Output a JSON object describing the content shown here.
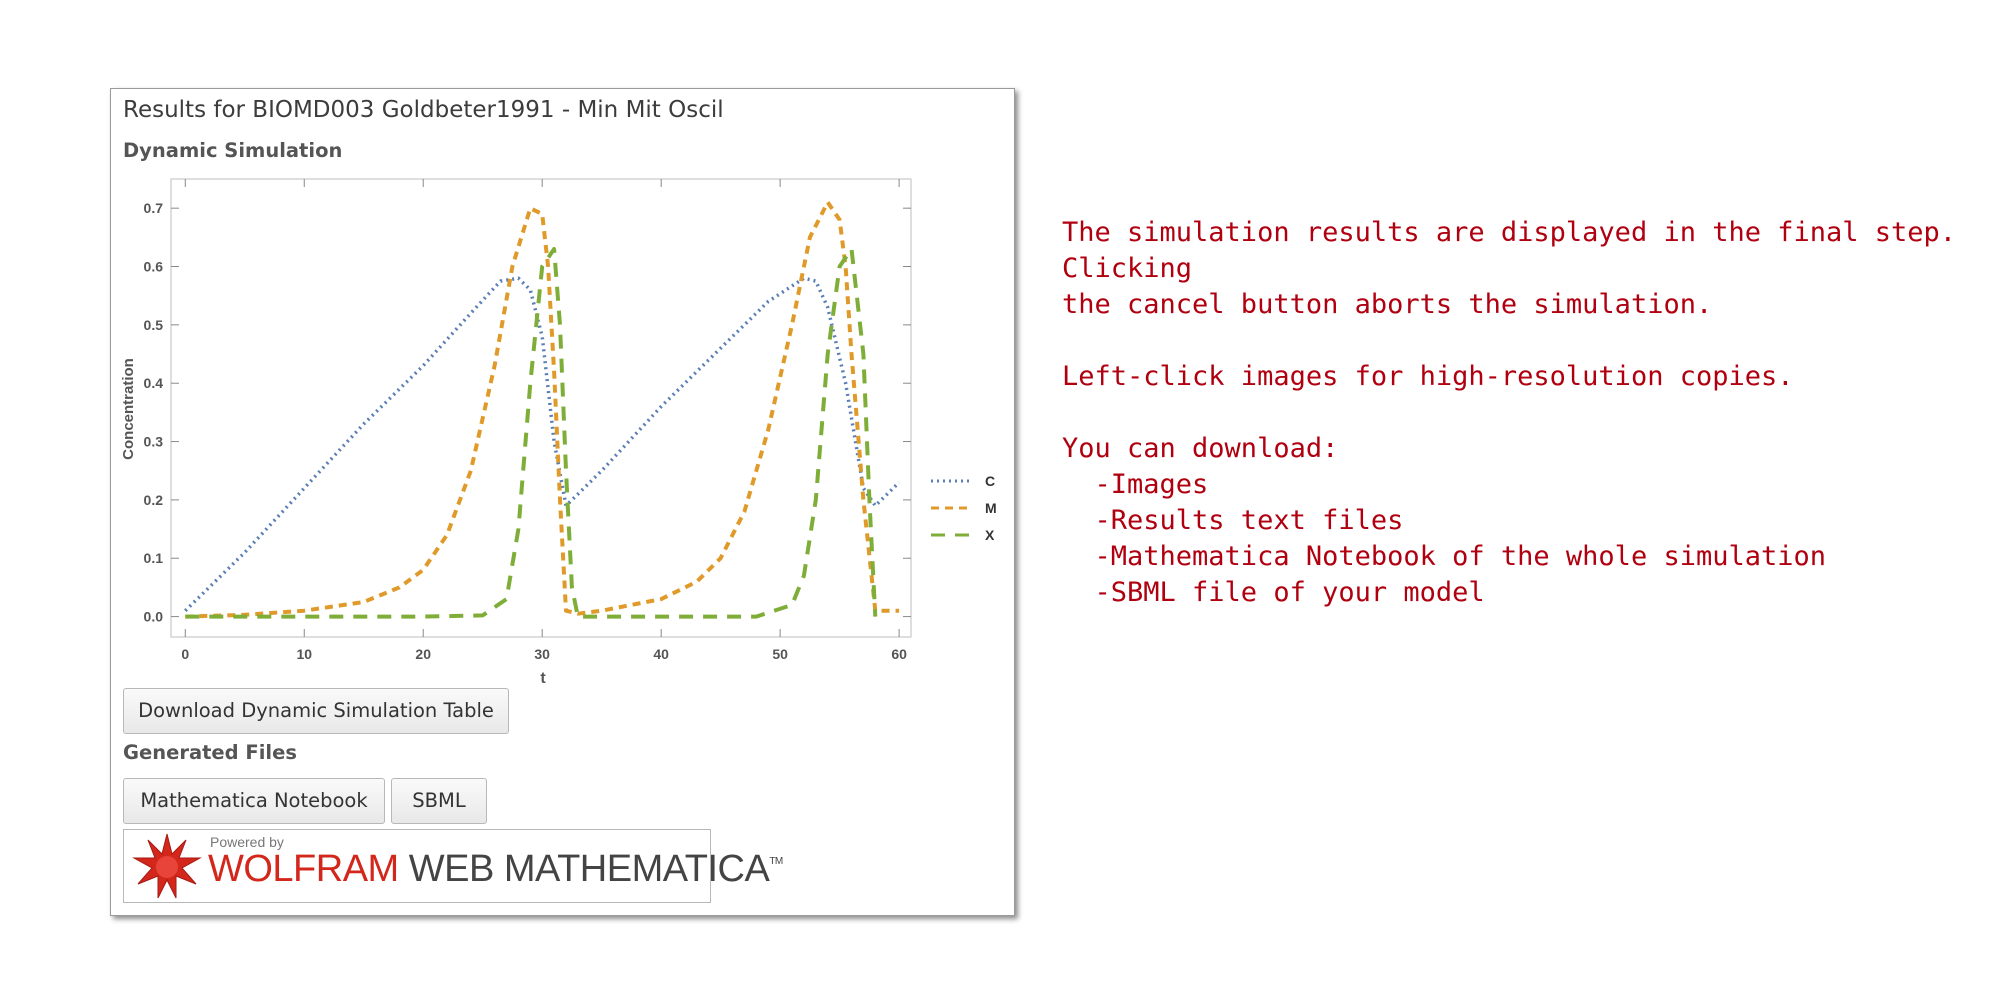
{
  "panel": {
    "title": "Results for BIOMD003 Goldbeter1991 - Min Mit Oscil",
    "subtitle": "Dynamic Simulation",
    "download_table_button": "Download Dynamic Simulation Table",
    "generated_files_label": "Generated Files",
    "notebook_button": "Mathematica Notebook",
    "sbml_button": "SBML",
    "logo": {
      "powered_by": "Powered by",
      "wolfram": "WOLFRAM",
      "product": " WEB MATHEMATICA",
      "tm": "TM"
    }
  },
  "chart_data": {
    "type": "line",
    "xlabel": "t",
    "ylabel": "Concentration",
    "xlim": [
      -1.2,
      61
    ],
    "ylim": [
      -0.035,
      0.75
    ],
    "xticks": [
      0,
      10,
      20,
      30,
      40,
      50,
      60
    ],
    "yticks": [
      0.0,
      0.1,
      0.2,
      0.3,
      0.4,
      0.5,
      0.6,
      0.7
    ],
    "ytick_labels": [
      "0.0",
      "0.1",
      "0.2",
      "0.3",
      "0.4",
      "0.5",
      "0.6",
      "0.7"
    ],
    "legend_position": "right",
    "grid": false,
    "series": [
      {
        "name": "C",
        "color": "#5b7fb4",
        "style": "dotted",
        "points": [
          [
            0,
            0.01
          ],
          [
            2,
            0.05
          ],
          [
            5,
            0.11
          ],
          [
            10,
            0.22
          ],
          [
            15,
            0.33
          ],
          [
            20,
            0.43
          ],
          [
            24,
            0.52
          ],
          [
            26.5,
            0.575
          ],
          [
            28,
            0.58
          ],
          [
            29,
            0.56
          ],
          [
            30,
            0.48
          ],
          [
            31,
            0.3
          ],
          [
            32,
            0.19
          ],
          [
            33,
            0.21
          ],
          [
            35,
            0.25
          ],
          [
            40,
            0.36
          ],
          [
            45,
            0.46
          ],
          [
            49,
            0.54
          ],
          [
            52,
            0.58
          ],
          [
            53,
            0.575
          ],
          [
            54,
            0.53
          ],
          [
            55.5,
            0.4
          ],
          [
            57,
            0.22
          ],
          [
            58,
            0.19
          ],
          [
            59,
            0.21
          ],
          [
            60,
            0.23
          ]
        ]
      },
      {
        "name": "M",
        "color": "#e09a2a",
        "style": "dashed",
        "points": [
          [
            0,
            0.0
          ],
          [
            5,
            0.003
          ],
          [
            10,
            0.01
          ],
          [
            15,
            0.025
          ],
          [
            18,
            0.05
          ],
          [
            20,
            0.08
          ],
          [
            22,
            0.14
          ],
          [
            24,
            0.25
          ],
          [
            26,
            0.43
          ],
          [
            27.5,
            0.6
          ],
          [
            29,
            0.7
          ],
          [
            30,
            0.69
          ],
          [
            30.5,
            0.6
          ],
          [
            31,
            0.42
          ],
          [
            31.5,
            0.2
          ],
          [
            32,
            0.01
          ],
          [
            33,
            0.005
          ],
          [
            35,
            0.01
          ],
          [
            40,
            0.03
          ],
          [
            43,
            0.06
          ],
          [
            45,
            0.1
          ],
          [
            47,
            0.18
          ],
          [
            49,
            0.32
          ],
          [
            51,
            0.5
          ],
          [
            52.5,
            0.65
          ],
          [
            54,
            0.71
          ],
          [
            55,
            0.68
          ],
          [
            55.5,
            0.6
          ],
          [
            56,
            0.45
          ],
          [
            57,
            0.2
          ],
          [
            58,
            0.01
          ],
          [
            60,
            0.01
          ]
        ]
      },
      {
        "name": "X",
        "color": "#7fae38",
        "style": "dashed-long",
        "points": [
          [
            0,
            0.0
          ],
          [
            10,
            0.0
          ],
          [
            20,
            0.0
          ],
          [
            25,
            0.002
          ],
          [
            27,
            0.03
          ],
          [
            28,
            0.15
          ],
          [
            29,
            0.4
          ],
          [
            30,
            0.6
          ],
          [
            31,
            0.63
          ],
          [
            31.5,
            0.5
          ],
          [
            32,
            0.25
          ],
          [
            32.5,
            0.05
          ],
          [
            33,
            0.0
          ],
          [
            40,
            0.0
          ],
          [
            48,
            0.0
          ],
          [
            51,
            0.02
          ],
          [
            52,
            0.07
          ],
          [
            53,
            0.2
          ],
          [
            54,
            0.45
          ],
          [
            55,
            0.6
          ],
          [
            56,
            0.63
          ],
          [
            57,
            0.45
          ],
          [
            57.5,
            0.2
          ],
          [
            58,
            0.0
          ]
        ]
      }
    ]
  },
  "info": {
    "line1": "The simulation results are displayed in the final step. Clicking",
    "line2": "the cancel button aborts the simulation.",
    "line3": "Left-click images for high-resolution copies.",
    "line4": "You can download:",
    "items": [
      "  -Images",
      "  -Results text files",
      "  -Mathematica Notebook of the whole simulation",
      "  -SBML file of your model"
    ]
  }
}
